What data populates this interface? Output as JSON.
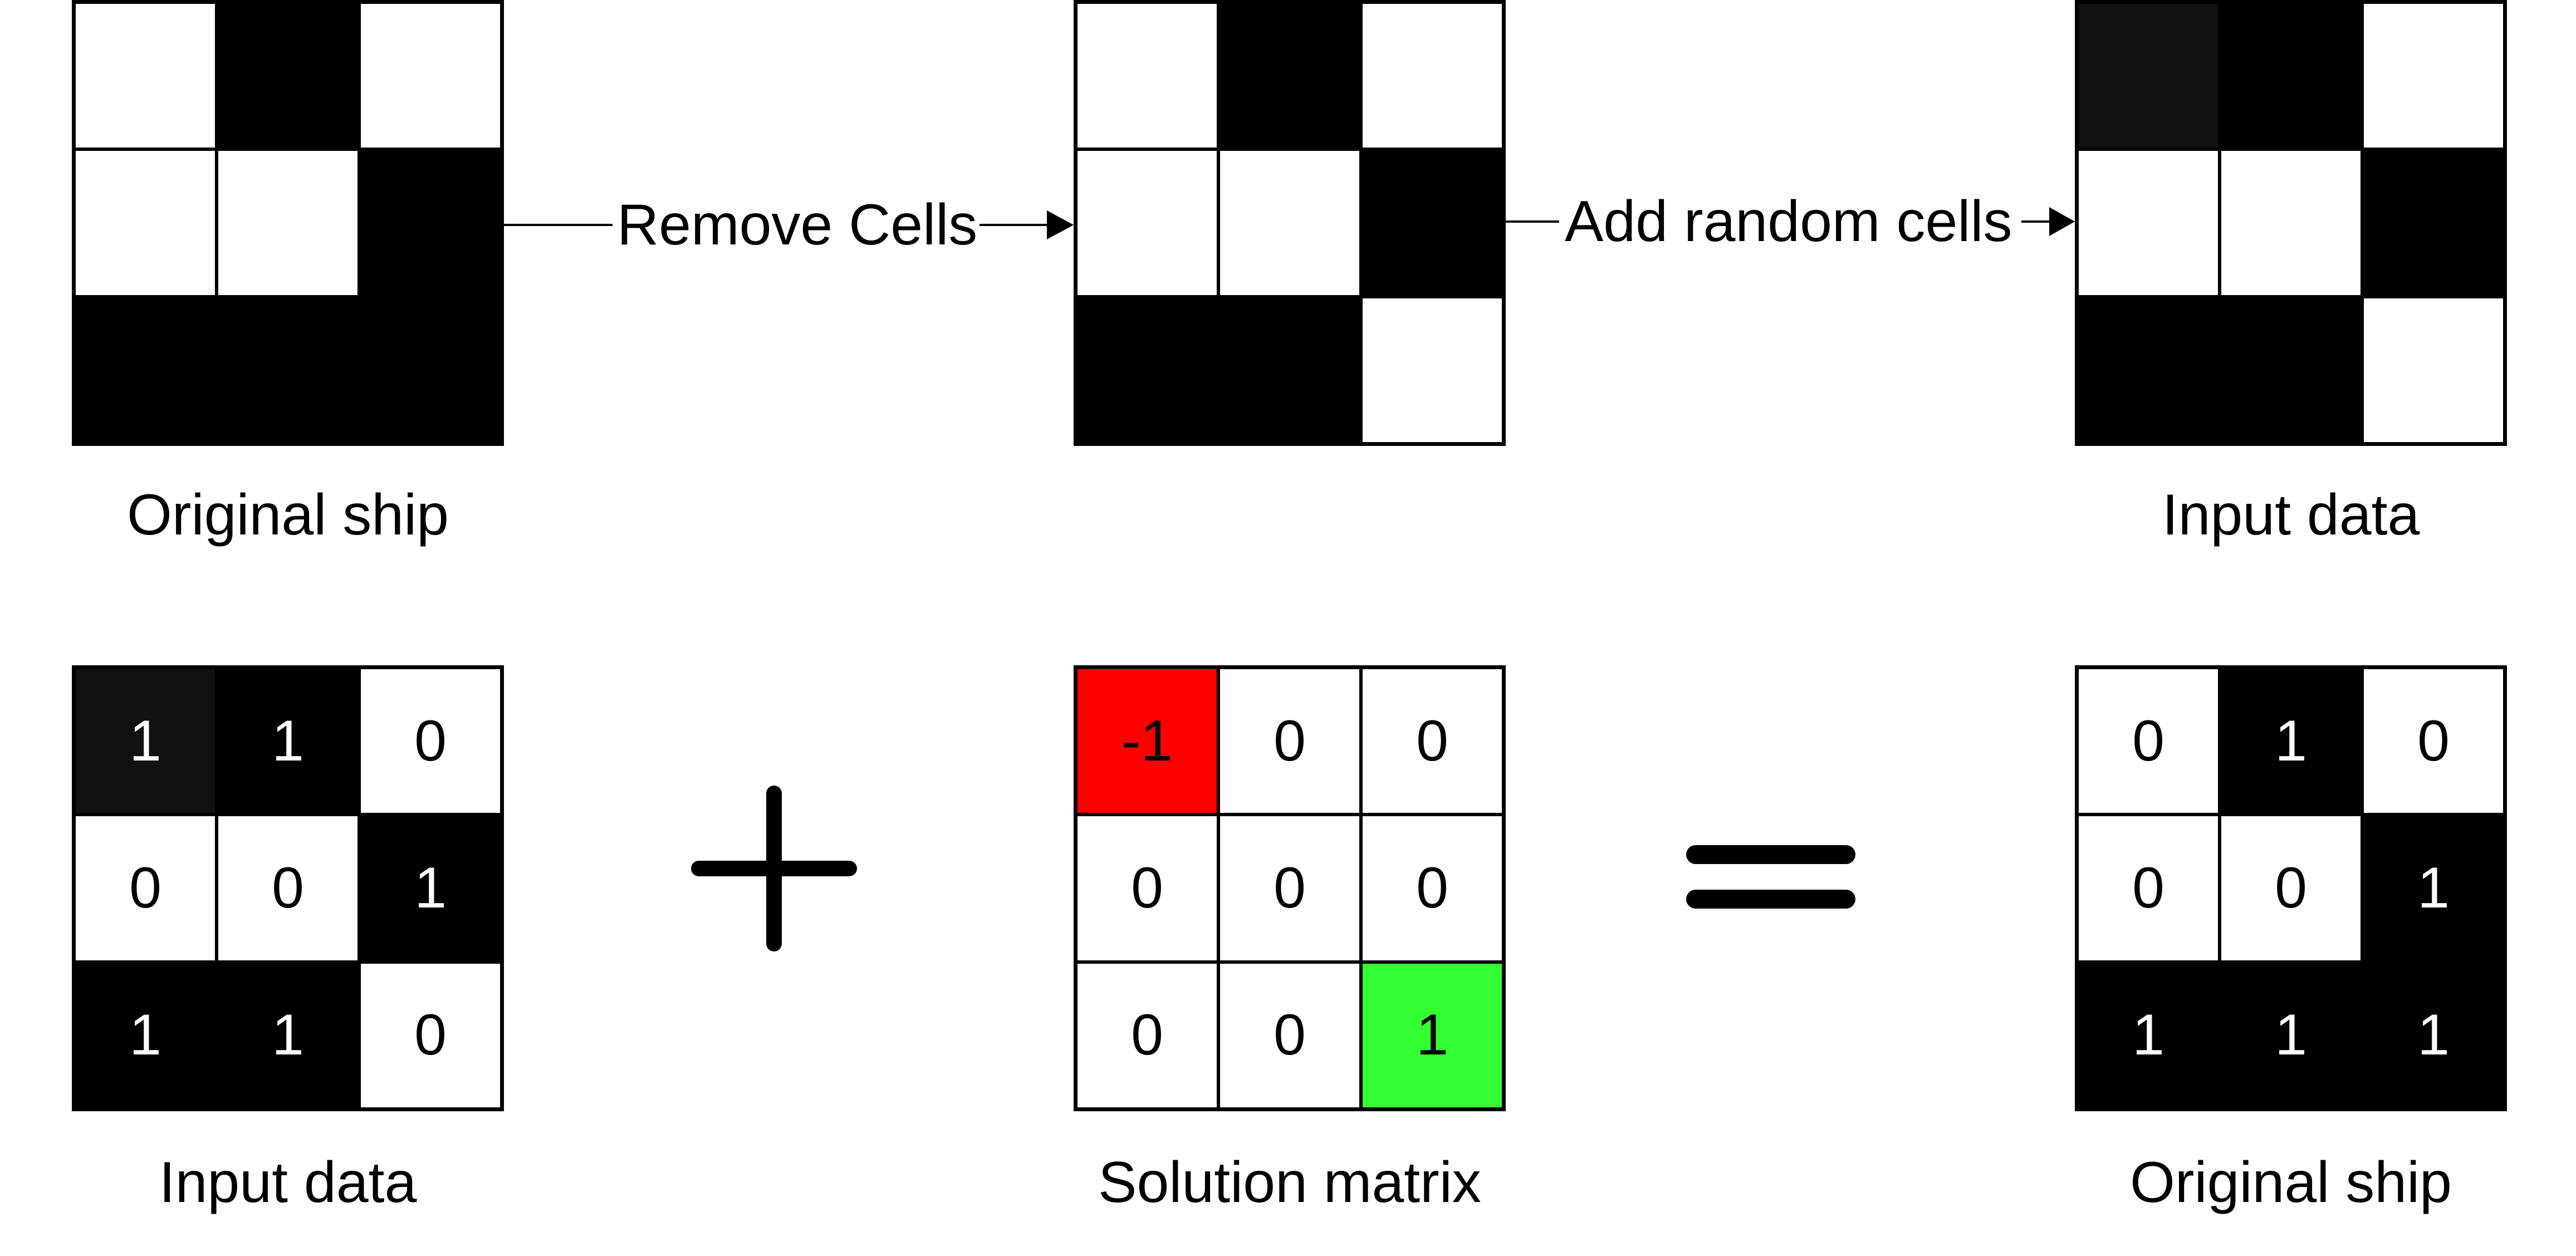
{
  "colors": {
    "on": "#000000",
    "on_dim": "#111111",
    "off": "#ffffff",
    "negative": "#ff0000",
    "positive": "#33ff33"
  },
  "steps": {
    "remove_label": "Remove Cells",
    "add_label": "Add random cells"
  },
  "operators": {
    "plus": "plus-icon",
    "equals": "equals-icon"
  },
  "top_row": [
    {
      "id": "original-ship-top",
      "caption": "Original ship",
      "cells": [
        "off",
        "on",
        "off",
        "off",
        "off",
        "on",
        "on",
        "on",
        "on"
      ]
    },
    {
      "id": "removed-cells",
      "caption": "",
      "cells": [
        "off",
        "on",
        "off",
        "off",
        "off",
        "on",
        "on",
        "on",
        "off"
      ]
    },
    {
      "id": "input-data-top",
      "caption": "Input data",
      "cells": [
        "on_dim",
        "on",
        "off",
        "off",
        "off",
        "on",
        "on",
        "on",
        "off"
      ]
    }
  ],
  "bottom_row": [
    {
      "id": "input-data-bottom",
      "caption": "Input data",
      "cells": [
        "on_dim",
        "on",
        "off",
        "off",
        "off",
        "on",
        "on",
        "on",
        "off"
      ],
      "values": [
        "1",
        "1",
        "0",
        "0",
        "0",
        "1",
        "1",
        "1",
        "0"
      ]
    },
    {
      "id": "solution-matrix",
      "caption": "Solution matrix",
      "cells": [
        "negative",
        "off",
        "off",
        "off",
        "off",
        "off",
        "off",
        "off",
        "positive"
      ],
      "values": [
        "-1",
        "0",
        "0",
        "0",
        "0",
        "0",
        "0",
        "0",
        "1"
      ]
    },
    {
      "id": "original-ship-bottom",
      "caption": "Original ship",
      "cells": [
        "off",
        "on",
        "off",
        "off",
        "off",
        "on",
        "on",
        "on",
        "on"
      ],
      "values": [
        "0",
        "1",
        "0",
        "0",
        "0",
        "1",
        "1",
        "1",
        "1"
      ]
    }
  ]
}
